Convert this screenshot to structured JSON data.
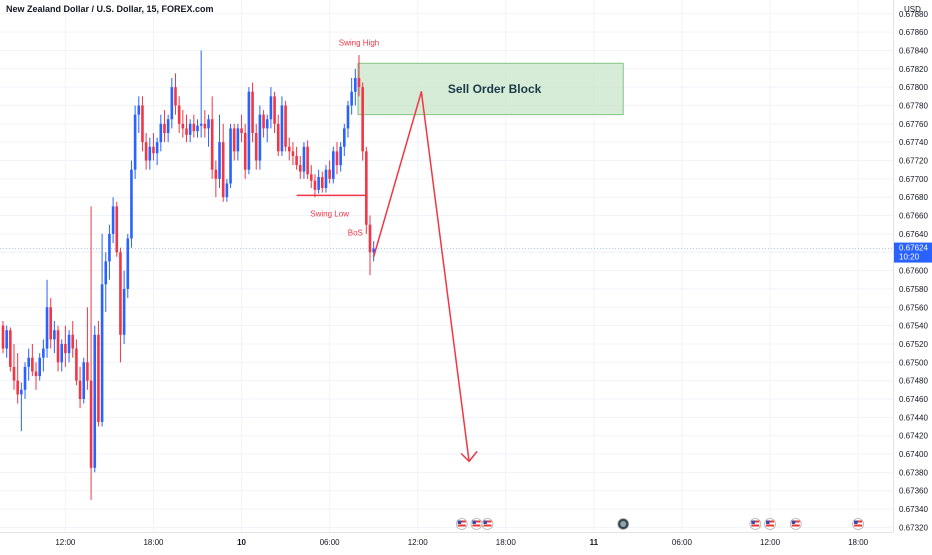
{
  "chart_data": {
    "type": "candlestick",
    "title": "New Zealand Dollar / U.S. Dollar, 15, FOREX.com",
    "currency": "USD",
    "ylim": [
      0.67315,
      0.67895
    ],
    "y_ticks": [
      "0.67880",
      "0.67860",
      "0.67840",
      "0.67820",
      "0.67800",
      "0.67780",
      "0.67760",
      "0.67740",
      "0.67720",
      "0.67700",
      "0.67680",
      "0.67660",
      "0.67640",
      "0.67620",
      "0.67600",
      "0.67580",
      "0.67560",
      "0.67540",
      "0.67520",
      "0.67500",
      "0.67480",
      "0.67460",
      "0.67440",
      "0.67420",
      "0.67400",
      "0.67380",
      "0.67360",
      "0.67340",
      "0.67320"
    ],
    "x_ticks": [
      {
        "label": "12:00",
        "bar": 17,
        "bold": false
      },
      {
        "label": "18:00",
        "bar": 41,
        "bold": false
      },
      {
        "label": "10",
        "bar": 65,
        "bold": true
      },
      {
        "label": "06:00",
        "bar": 89,
        "bold": false
      },
      {
        "label": "12:00",
        "bar": 113,
        "bold": false
      },
      {
        "label": "18:00",
        "bar": 137,
        "bold": false
      },
      {
        "label": "11",
        "bar": 161,
        "bold": true
      },
      {
        "label": "06:00",
        "bar": 185,
        "bold": false
      },
      {
        "label": "12:00",
        "bar": 209,
        "bold": false
      },
      {
        "label": "18:00",
        "bar": 233,
        "bold": false
      }
    ],
    "current_price": {
      "value": 0.67624,
      "label": "0.67624",
      "countdown": "10:20",
      "color": "#2962ff"
    },
    "colors": {
      "up": "#2962ff",
      "down": "#f23645",
      "annotation": "#f23645",
      "zone_fill": "#c8e6c9",
      "zone_border": "#81c784",
      "zone_text": "#1b3b4b"
    },
    "annotations": {
      "swing_high": {
        "text": "Swing High",
        "bar": 97,
        "price": 0.67843
      },
      "swing_low": {
        "text": "Swing Low",
        "bar": 89,
        "price": 0.67662
      },
      "bos": {
        "text": "BoS",
        "bar": 96,
        "price": 0.67638
      },
      "swing_low_line": {
        "bar_from": 80,
        "bar_to": 99,
        "price": 0.67682
      },
      "sell_order_block": {
        "text": "Sell Order Block",
        "bar_from": 97,
        "bar_to": 169,
        "price_top": 0.67826,
        "price_bottom": 0.6777
      },
      "projection": [
        {
          "bar": 101,
          "price": 0.67615
        },
        {
          "bar": 114,
          "price": 0.67795
        },
        {
          "bar": 127,
          "price": 0.67392
        }
      ]
    },
    "event_markers": [
      {
        "bar": 125,
        "type": "us"
      },
      {
        "bar": 129,
        "type": "us"
      },
      {
        "bar": 132,
        "type": "us"
      },
      {
        "bar": 169,
        "type": "other"
      },
      {
        "bar": 205,
        "type": "us"
      },
      {
        "bar": 209,
        "type": "us"
      },
      {
        "bar": 216,
        "type": "us"
      },
      {
        "bar": 233,
        "type": "us"
      }
    ],
    "candles": [
      [
        0.6754,
        0.67545,
        0.6751,
        0.67515
      ],
      [
        0.67515,
        0.6754,
        0.67505,
        0.67535
      ],
      [
        0.67535,
        0.67538,
        0.6749,
        0.67495
      ],
      [
        0.67495,
        0.6752,
        0.6747,
        0.6748
      ],
      [
        0.6748,
        0.6751,
        0.67455,
        0.67465
      ],
      [
        0.67465,
        0.67478,
        0.67425,
        0.6747
      ],
      [
        0.6747,
        0.675,
        0.6746,
        0.67495
      ],
      [
        0.67495,
        0.67515,
        0.6748,
        0.67505
      ],
      [
        0.67505,
        0.6752,
        0.67485,
        0.6749
      ],
      [
        0.6749,
        0.675,
        0.6747,
        0.67485
      ],
      [
        0.67485,
        0.6751,
        0.6748,
        0.67505
      ],
      [
        0.67505,
        0.67525,
        0.6749,
        0.67515
      ],
      [
        0.67515,
        0.6759,
        0.67505,
        0.6756
      ],
      [
        0.6756,
        0.6757,
        0.67515,
        0.67525
      ],
      [
        0.67525,
        0.67545,
        0.6751,
        0.67535
      ],
      [
        0.67535,
        0.6754,
        0.6749,
        0.675
      ],
      [
        0.675,
        0.67525,
        0.6749,
        0.6752
      ],
      [
        0.6752,
        0.6754,
        0.67495,
        0.6751
      ],
      [
        0.6751,
        0.67535,
        0.675,
        0.6753
      ],
      [
        0.6753,
        0.67545,
        0.67505,
        0.67515
      ],
      [
        0.67515,
        0.67525,
        0.67475,
        0.6748
      ],
      [
        0.6748,
        0.67495,
        0.6745,
        0.6746
      ],
      [
        0.6746,
        0.67505,
        0.67455,
        0.675
      ],
      [
        0.675,
        0.6756,
        0.6747,
        0.6748
      ],
      [
        0.6748,
        0.6767,
        0.6735,
        0.67385
      ],
      [
        0.67385,
        0.6754,
        0.6738,
        0.6753
      ],
      [
        0.6753,
        0.67545,
        0.6743,
        0.67435
      ],
      [
        0.67435,
        0.6764,
        0.6743,
        0.67585
      ],
      [
        0.67585,
        0.6762,
        0.67555,
        0.6761
      ],
      [
        0.6761,
        0.6765,
        0.6759,
        0.6764
      ],
      [
        0.6764,
        0.6768,
        0.6763,
        0.6767
      ],
      [
        0.6767,
        0.67675,
        0.67615,
        0.6762
      ],
      [
        0.6762,
        0.67625,
        0.675,
        0.6753
      ],
      [
        0.6753,
        0.676,
        0.6752,
        0.6758
      ],
      [
        0.6758,
        0.6764,
        0.6757,
        0.67635
      ],
      [
        0.67635,
        0.6772,
        0.67625,
        0.6771
      ],
      [
        0.6771,
        0.6778,
        0.677,
        0.6777
      ],
      [
        0.6777,
        0.6779,
        0.6775,
        0.6778
      ],
      [
        0.6778,
        0.6779,
        0.6773,
        0.6774
      ],
      [
        0.6774,
        0.6775,
        0.6771,
        0.6772
      ],
      [
        0.6772,
        0.67745,
        0.6771,
        0.67735
      ],
      [
        0.67735,
        0.6775,
        0.6772,
        0.67728
      ],
      [
        0.67728,
        0.67745,
        0.67715,
        0.6774
      ],
      [
        0.6774,
        0.6777,
        0.6773,
        0.6776
      ],
      [
        0.6776,
        0.67775,
        0.6774,
        0.6775
      ],
      [
        0.6775,
        0.6777,
        0.6774,
        0.67765
      ],
      [
        0.67765,
        0.6781,
        0.67755,
        0.678
      ],
      [
        0.678,
        0.67815,
        0.6777,
        0.6778
      ],
      [
        0.6778,
        0.6779,
        0.6775,
        0.6776
      ],
      [
        0.6776,
        0.67775,
        0.67745,
        0.67755
      ],
      [
        0.67755,
        0.6777,
        0.6774,
        0.67748
      ],
      [
        0.67748,
        0.67765,
        0.6774,
        0.6776
      ],
      [
        0.6776,
        0.6777,
        0.67745,
        0.67752
      ],
      [
        0.67752,
        0.67765,
        0.67745,
        0.67758
      ],
      [
        0.67758,
        0.6784,
        0.67745,
        0.6776
      ],
      [
        0.6776,
        0.67775,
        0.67745,
        0.67755
      ],
      [
        0.67755,
        0.6777,
        0.67735,
        0.67765
      ],
      [
        0.67765,
        0.6779,
        0.677,
        0.6771
      ],
      [
        0.6771,
        0.6772,
        0.6768,
        0.677
      ],
      [
        0.677,
        0.6777,
        0.6769,
        0.6774
      ],
      [
        0.6774,
        0.6776,
        0.67675,
        0.6768
      ],
      [
        0.6768,
        0.677,
        0.67675,
        0.67695
      ],
      [
        0.67695,
        0.6776,
        0.6769,
        0.67755
      ],
      [
        0.67755,
        0.6776,
        0.6772,
        0.6773
      ],
      [
        0.6773,
        0.6776,
        0.6772,
        0.67755
      ],
      [
        0.67755,
        0.6777,
        0.6774,
        0.6775
      ],
      [
        0.6775,
        0.6776,
        0.677,
        0.6771
      ],
      [
        0.6771,
        0.678,
        0.67705,
        0.67795
      ],
      [
        0.67795,
        0.67805,
        0.6774,
        0.6775
      ],
      [
        0.6775,
        0.6776,
        0.6771,
        0.6772
      ],
      [
        0.6772,
        0.6778,
        0.6771,
        0.6777
      ],
      [
        0.6777,
        0.67775,
        0.67745,
        0.67755
      ],
      [
        0.67755,
        0.6777,
        0.6774,
        0.67765
      ],
      [
        0.67765,
        0.678,
        0.67755,
        0.6779
      ],
      [
        0.6779,
        0.67795,
        0.6775,
        0.6776
      ],
      [
        0.6776,
        0.6777,
        0.67725,
        0.6773
      ],
      [
        0.6773,
        0.6779,
        0.67725,
        0.6778
      ],
      [
        0.6778,
        0.67785,
        0.6773,
        0.67735
      ],
      [
        0.67735,
        0.67745,
        0.6772,
        0.6773
      ],
      [
        0.6773,
        0.6774,
        0.67715,
        0.67725
      ],
      [
        0.67725,
        0.67735,
        0.6771,
        0.67715
      ],
      [
        0.67715,
        0.67725,
        0.677,
        0.67708
      ],
      [
        0.67708,
        0.6774,
        0.677,
        0.67735
      ],
      [
        0.67735,
        0.67742,
        0.677,
        0.67705
      ],
      [
        0.67705,
        0.67715,
        0.6769,
        0.67698
      ],
      [
        0.67698,
        0.67705,
        0.6768,
        0.67688
      ],
      [
        0.67688,
        0.6771,
        0.67684,
        0.67702
      ],
      [
        0.67702,
        0.67708,
        0.67685,
        0.6769
      ],
      [
        0.6769,
        0.67715,
        0.67685,
        0.6771
      ],
      [
        0.6771,
        0.6772,
        0.67695,
        0.677
      ],
      [
        0.677,
        0.67735,
        0.67695,
        0.6773
      ],
      [
        0.6773,
        0.6774,
        0.67705,
        0.67715
      ],
      [
        0.67715,
        0.6774,
        0.67708,
        0.67735
      ],
      [
        0.67735,
        0.6776,
        0.67725,
        0.67755
      ],
      [
        0.67755,
        0.67785,
        0.67745,
        0.6778
      ],
      [
        0.6778,
        0.6781,
        0.6777,
        0.67795
      ],
      [
        0.67795,
        0.6782,
        0.6778,
        0.6781
      ],
      [
        0.6781,
        0.67835,
        0.6779,
        0.678
      ],
      [
        0.678,
        0.67805,
        0.6772,
        0.6773
      ],
      [
        0.6773,
        0.67735,
        0.6764,
        0.6765
      ],
      [
        0.6765,
        0.6766,
        0.67595,
        0.6762
      ],
      [
        0.6762,
        0.67632,
        0.6761,
        0.67624
      ]
    ]
  }
}
